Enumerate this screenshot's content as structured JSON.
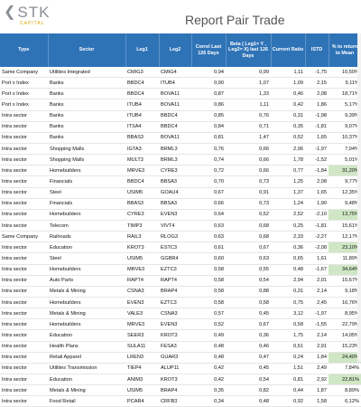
{
  "title": "Report Pair Trade",
  "logo": {
    "main": "STK",
    "sub": "CAPITAL"
  },
  "columns": [
    "Type",
    "Sector",
    "Leg1",
    "Leg2",
    "Correl Last 126 Days",
    "Beta ( Leg1= Y , Leg2= X) last 126 Days",
    "Current Ratio",
    "ISTD",
    "% to return to Mean"
  ],
  "rows": [
    [
      "Same Company",
      "Utilities Integrated",
      "CMIG3",
      "CMIG4",
      "0,94",
      "0,99",
      "1,11",
      "-1,75",
      "10,50%",
      false
    ],
    [
      "Port x Index",
      "Banks",
      "BBDC4",
      "ITUB4",
      "0,90",
      "1,07",
      "1,09",
      "2,15",
      "9,11%",
      false
    ],
    [
      "Port x Index",
      "Banks",
      "BBDC4",
      "BOVA11",
      "0,87",
      "1,33",
      "0,46",
      "2,08",
      "18,71%",
      false
    ],
    [
      "Port x Index",
      "Banks",
      "ITUB4",
      "BOVA11",
      "0,86",
      "1,11",
      "0,42",
      "1,86",
      "5,17%",
      false
    ],
    [
      "Intra sector",
      "Banks",
      "ITUB4",
      "BBDC4",
      "0,85",
      "0,76",
      "0,31",
      "-1,98",
      "9,39%",
      false
    ],
    [
      "Intra sector",
      "Banks",
      "ITSA4",
      "BBDC4",
      "0,84",
      "0,71",
      "0,35",
      "-1,81",
      "9,07%",
      false
    ],
    [
      "Intra sector",
      "Banks",
      "BBAS3",
      "BOVA11",
      "0,81",
      "1,47",
      "0,52",
      "1,65",
      "10,37%",
      false
    ],
    [
      "Intra sector",
      "Shopping Malls",
      "IGTA3",
      "BRML3",
      "0,76",
      "0,66",
      "2,96",
      "-1,97",
      "7,04%",
      false
    ],
    [
      "Intra sector",
      "Shopping Malls",
      "MULT3",
      "BRML3",
      "0,74",
      "0,66",
      "1,78",
      "-1,52",
      "5,01%",
      false
    ],
    [
      "Intra sector",
      "Homebuilders",
      "MRVE3",
      "CYRE3",
      "0,72",
      "0,66",
      "0,77",
      "-1,84",
      "31,20%",
      true
    ],
    [
      "Intra sector",
      "Financials",
      "BBDC4",
      "BBSA3",
      "0,70",
      "0,73",
      "1,25",
      "2,08",
      "9,77%",
      false
    ],
    [
      "Intra sector",
      "Steel",
      "USIM5",
      "GOAU4",
      "0,67",
      "0,91",
      "1,37",
      "1,65",
      "12,35%",
      false
    ],
    [
      "Intra sector",
      "Financials",
      "BBAS3",
      "BBSA3",
      "0,66",
      "0,73",
      "1,24",
      "1,90",
      "9,48%",
      false
    ],
    [
      "Intra sector",
      "Homebuilders",
      "CYRE3",
      "EVEN3",
      "0,64",
      "0,52",
      "2,52",
      "-2,10",
      "13,75%",
      true
    ],
    [
      "Intra sector",
      "Telecom",
      "TIMP3",
      "VIVT4",
      "0,63",
      "0,68",
      "0,25",
      "-1,81",
      "15,61%",
      false
    ],
    [
      "Same Company",
      "Railroads",
      "RAIL3",
      "RLOG3",
      "0,63",
      "0,68",
      "2,33",
      "-2,27",
      "12,17%",
      false
    ],
    [
      "Intra sector",
      "Education",
      "KROT3",
      "ESTC3",
      "0,61",
      "0,67",
      "0,36",
      "-2,08",
      "23,10%",
      true
    ],
    [
      "Intra sector",
      "Steel",
      "USIM5",
      "GGBR4",
      "0,60",
      "0,63",
      "0,65",
      "1,61",
      "11,89%",
      false
    ],
    [
      "Intra sector",
      "Homebuilders",
      "MRVE3",
      "EZTC3",
      "0,58",
      "0,55",
      "0,48",
      "-1,67",
      "34,64%",
      true
    ],
    [
      "Intra sector",
      "Auto Parts",
      "RAPT4",
      "RAPT4",
      "0,58",
      "0,54",
      "2,94",
      "2,01",
      "15,67%",
      false
    ],
    [
      "Intra sector",
      "Metals & Mining",
      "CSNA3",
      "BRAP4",
      "0,58",
      "0,88",
      "0,31",
      "2,14",
      "9,18%",
      false
    ],
    [
      "Intra sector",
      "Homebuilders",
      "EVEN3",
      "EZTC3",
      "0,58",
      "0,58",
      "0,75",
      "2,45",
      "16,76%",
      false
    ],
    [
      "Intra sector",
      "Metals & Mining",
      "VALE3",
      "CSNA3",
      "0,57",
      "0,45",
      "3,12",
      "-1,97",
      "8,95%",
      false
    ],
    [
      "Intra sector",
      "Homebuilders",
      "MRVE3",
      "EVEN3",
      "0,52",
      "0,67",
      "0,58",
      "-1,55",
      "22,79%",
      false
    ],
    [
      "Intra sector",
      "Education",
      "SEER3",
      "KROT3",
      "0,49",
      "0,36",
      "1,75",
      "2,14",
      "14,05%",
      false
    ],
    [
      "Intra sector",
      "Health Plans",
      "SULA11",
      "FESA3",
      "0,48",
      "0,46",
      "0,51",
      "2,91",
      "15,23%",
      false
    ],
    [
      "Intra sector",
      "Retail Apparel",
      "LREN3",
      "GUAR3",
      "0,48",
      "0,47",
      "0,24",
      "1,84",
      "24,40%",
      true
    ],
    [
      "Intra sector",
      "Utilities Transmission",
      "TIEP4",
      "ALUP11",
      "0,42",
      "0,45",
      "1,51",
      "2,49",
      "7,84%",
      false
    ],
    [
      "Intra sector",
      "Education",
      "ANIM3",
      "KROT3",
      "0,42",
      "0,54",
      "0,81",
      "2,92",
      "22,81%",
      true
    ],
    [
      "Intra sector",
      "Metals & Mining",
      "USIM5",
      "BRAP4",
      "0,35",
      "0,82",
      "0,44",
      "1,87",
      "8,89%",
      false
    ],
    [
      "Intra sector",
      "Food Retail",
      "PCAR4",
      "CRFB3",
      "0,34",
      "0,48",
      "0,92",
      "1,58",
      "6,12%",
      false
    ]
  ]
}
